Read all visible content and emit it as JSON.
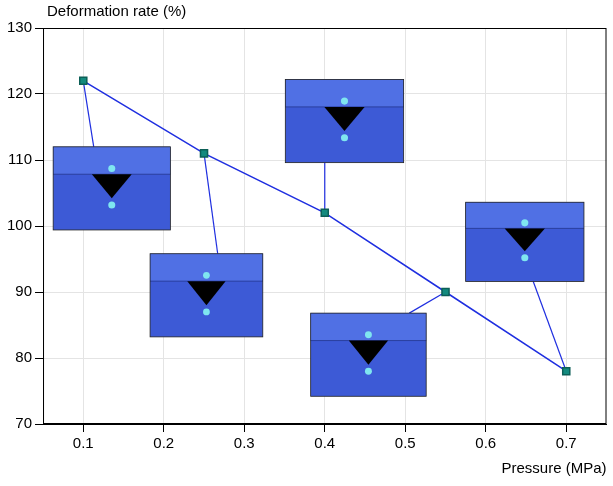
{
  "chart_data": {
    "type": "line",
    "x_label": "Pressure (MPa)",
    "y_label": "Deformation rate (%)",
    "x": [
      0.1,
      0.25,
      0.4,
      0.55,
      0.7
    ],
    "values": [
      122,
      111,
      102,
      90,
      78
    ],
    "color": "#1f2fe0",
    "marker": "square",
    "xlim": [
      0.05,
      0.75
    ],
    "xticks": [
      0.1,
      0.2,
      0.3,
      0.4,
      0.5,
      0.6,
      0.7
    ],
    "ylim": [
      70,
      130
    ],
    "yticks": [
      70,
      80,
      90,
      100,
      110,
      120,
      130
    ],
    "grid": true
  }
}
